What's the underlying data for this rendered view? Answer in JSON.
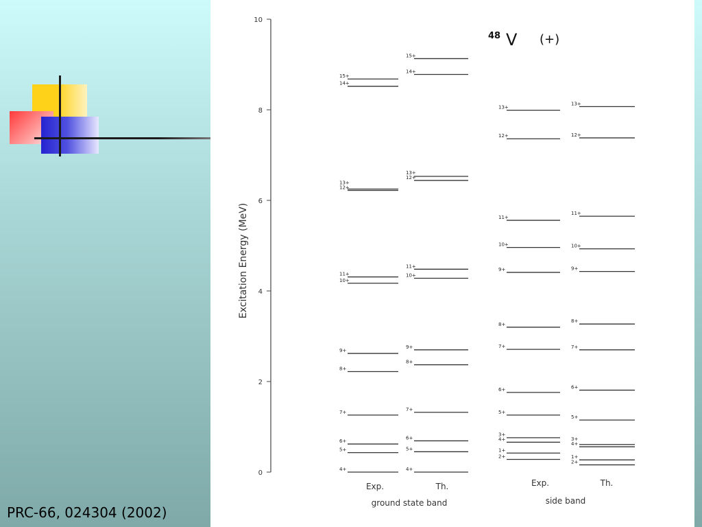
{
  "citation": "PRC-66, 024304 (2002)",
  "diagram": {
    "title_mass": "48",
    "title_element": "V",
    "title_parity": "(+)",
    "y_axis_label": "Excitation Energy (MeV)",
    "y_ticks": [
      "0",
      "2",
      "4",
      "6",
      "8",
      "10"
    ],
    "y_range": [
      0,
      10
    ],
    "columns": [
      {
        "id": "gsb_exp",
        "label": "Exp."
      },
      {
        "id": "gsb_th",
        "label": "Th."
      },
      {
        "id": "sb_exp",
        "label": "Exp."
      },
      {
        "id": "sb_th",
        "label": "Th."
      }
    ],
    "band_labels": {
      "ground": "ground state band",
      "side": "side band"
    },
    "levels": {
      "gsb_exp": [
        {
          "spin": "4+",
          "energy": 0.0
        },
        {
          "spin": "5+",
          "energy": 0.43
        },
        {
          "spin": "6+",
          "energy": 0.62
        },
        {
          "spin": "7+",
          "energy": 1.26
        },
        {
          "spin": "8+",
          "energy": 2.22
        },
        {
          "spin": "9+",
          "energy": 2.62
        },
        {
          "spin": "10+",
          "energy": 4.17
        },
        {
          "spin": "11+",
          "energy": 4.31
        },
        {
          "spin": "12+",
          "energy": 6.22
        },
        {
          "spin": "13+",
          "energy": 6.25
        },
        {
          "spin": "14+",
          "energy": 8.52
        },
        {
          "spin": "15+",
          "energy": 8.68
        }
      ],
      "gsb_th": [
        {
          "spin": "4+",
          "energy": 0.0
        },
        {
          "spin": "5+",
          "energy": 0.45
        },
        {
          "spin": "6+",
          "energy": 0.69
        },
        {
          "spin": "7+",
          "energy": 1.32
        },
        {
          "spin": "8+",
          "energy": 2.37
        },
        {
          "spin": "9+",
          "energy": 2.7
        },
        {
          "spin": "10+",
          "energy": 4.28
        },
        {
          "spin": "11+",
          "energy": 4.48
        },
        {
          "spin": "12+",
          "energy": 6.44
        },
        {
          "spin": "13+",
          "energy": 6.53
        },
        {
          "spin": "14+",
          "energy": 8.78
        },
        {
          "spin": "15+",
          "energy": 9.13
        }
      ],
      "sb_exp": [
        {
          "spin": "2+",
          "energy": 0.28
        },
        {
          "spin": "1+",
          "energy": 0.42
        },
        {
          "spin": "4+",
          "energy": 0.66
        },
        {
          "spin": "3+",
          "energy": 0.76
        },
        {
          "spin": "5+",
          "energy": 1.26
        },
        {
          "spin": "6+",
          "energy": 1.76
        },
        {
          "spin": "7+",
          "energy": 2.71
        },
        {
          "spin": "8+",
          "energy": 3.2
        },
        {
          "spin": "9+",
          "energy": 4.41
        },
        {
          "spin": "10+",
          "energy": 4.96
        },
        {
          "spin": "11+",
          "energy": 5.56
        },
        {
          "spin": "12+",
          "energy": 7.36
        },
        {
          "spin": "13+",
          "energy": 7.99
        }
      ],
      "sb_th": [
        {
          "spin": "2+",
          "energy": 0.16
        },
        {
          "spin": "1+",
          "energy": 0.27
        },
        {
          "spin": "4+",
          "energy": 0.56
        },
        {
          "spin": "3+",
          "energy": 0.61
        },
        {
          "spin": "5+",
          "energy": 1.15
        },
        {
          "spin": "6+",
          "energy": 1.81
        },
        {
          "spin": "7+",
          "energy": 2.7
        },
        {
          "spin": "8+",
          "energy": 3.27
        },
        {
          "spin": "9+",
          "energy": 4.43
        },
        {
          "spin": "10+",
          "energy": 4.93
        },
        {
          "spin": "11+",
          "energy": 5.65
        },
        {
          "spin": "12+",
          "energy": 7.38
        },
        {
          "spin": "13+",
          "energy": 8.07
        }
      ]
    }
  }
}
